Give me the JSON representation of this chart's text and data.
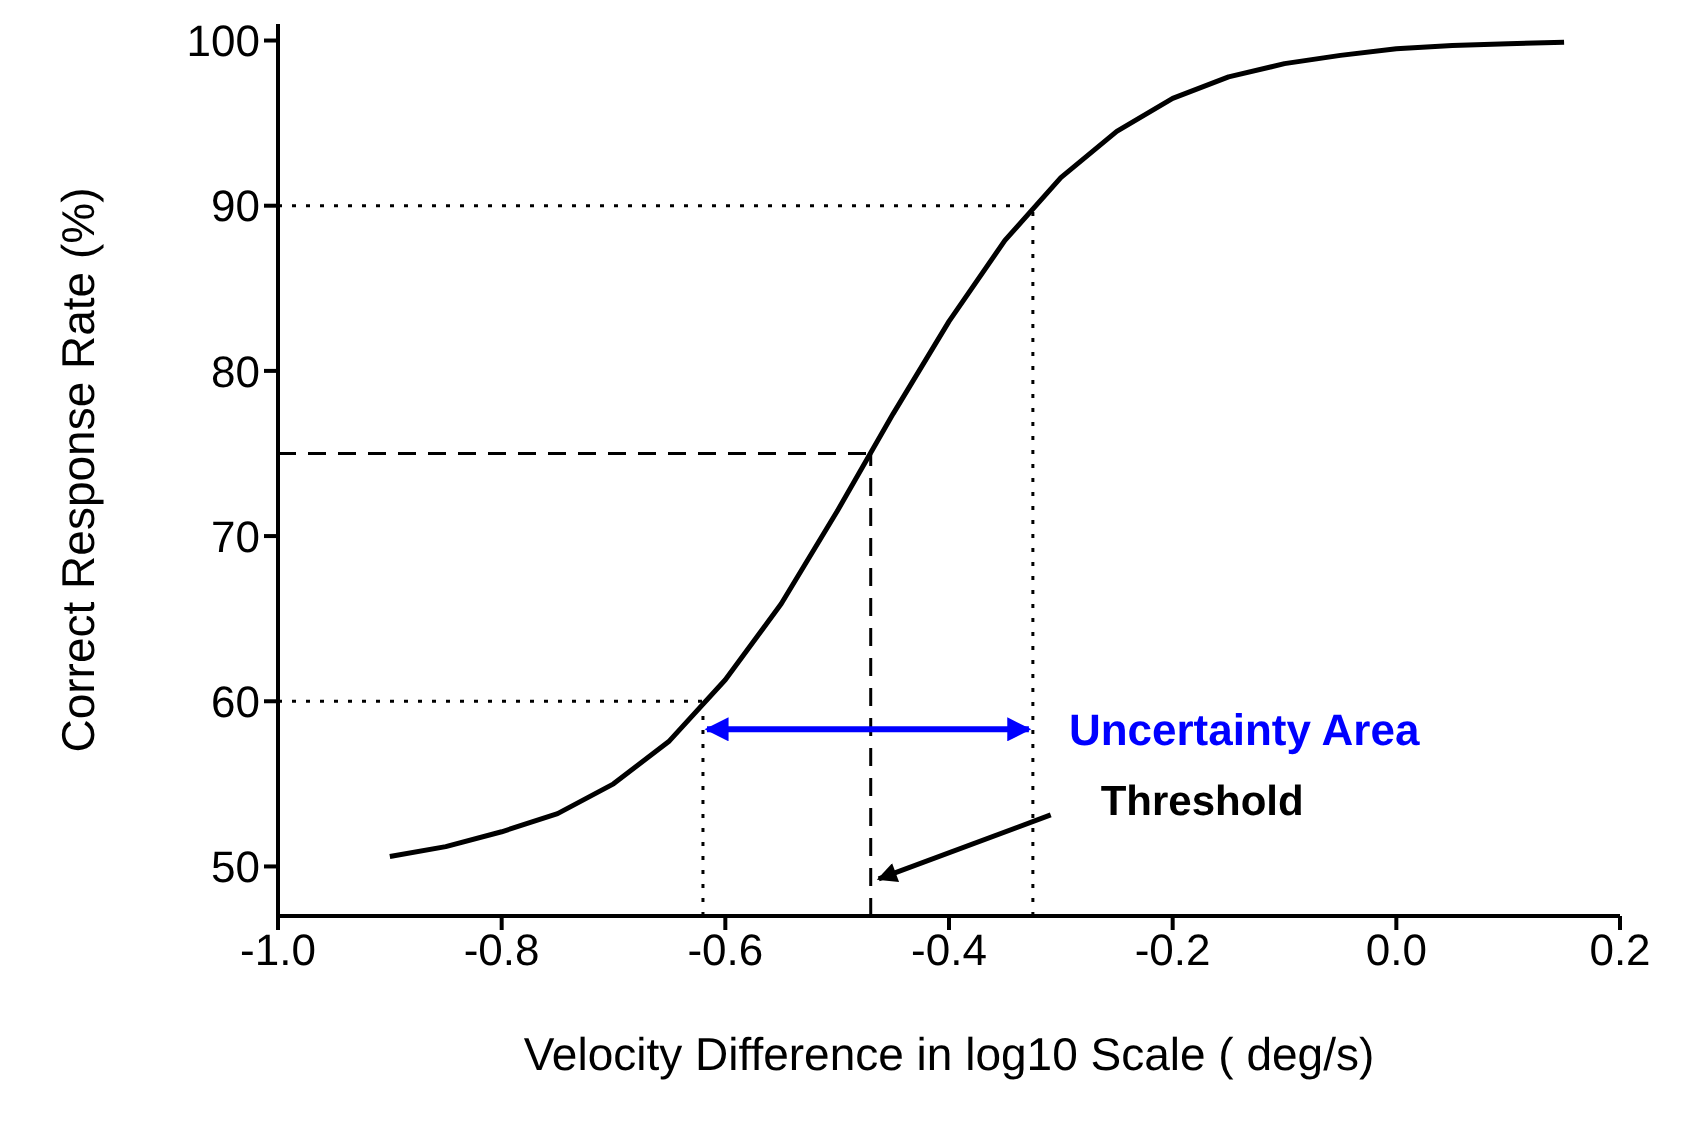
{
  "chart_data": {
    "type": "line",
    "xlabel": "Velocity Difference in log10 Scale ( deg/s)",
    "ylabel": "Correct Response Rate (%)",
    "x": [
      -0.9,
      -0.85,
      -0.8,
      -0.75,
      -0.7,
      -0.65,
      -0.6,
      -0.55,
      -0.5,
      -0.45,
      -0.4,
      -0.35,
      -0.3,
      -0.25,
      -0.2,
      -0.15,
      -0.1,
      -0.05,
      0,
      0.05,
      0.1,
      0.15
    ],
    "series": [
      {
        "color": "#000000",
        "values": [
          50.6,
          51.2,
          52.1,
          53.2,
          55.0,
          57.6,
          61.3,
          65.9,
          71.5,
          77.4,
          83.0,
          87.9,
          91.7,
          94.5,
          96.5,
          97.8,
          98.6,
          99.1,
          99.5,
          99.7,
          99.8,
          99.9
        ]
      }
    ],
    "xlim": [
      -1.0,
      0.2
    ],
    "ylim": [
      47,
      101
    ],
    "xticks": [
      {
        "value": -1.0,
        "label": "-1.0"
      },
      -0.8,
      -0.6,
      -0.4,
      -0.2,
      {
        "value": 0,
        "label": "0.0"
      },
      0.2
    ],
    "yticks": [
      50,
      60,
      70,
      80,
      90,
      100
    ],
    "ref_lines": [
      {
        "axis": "y",
        "value": 90,
        "line_style": "dotted"
      },
      {
        "axis": "x",
        "value": -0.325,
        "line_style": "dotted"
      },
      {
        "axis": "y",
        "value": 75,
        "line_style": "dashed"
      },
      {
        "axis": "x",
        "value": -0.47,
        "line_style": "dashed"
      },
      {
        "axis": "y",
        "value": 60,
        "line_style": "dotted"
      },
      {
        "axis": "x",
        "value": -0.62,
        "line_style": "dotted"
      }
    ],
    "annotations": [
      {
        "text": "Uncertainty Area",
        "x": -0.325,
        "y": 58.3
      },
      {
        "text": "Threshold",
        "x": -0.47,
        "y": 49
      }
    ],
    "grid": false,
    "legend": false,
    "marker": "none",
    "line_style": "solid"
  }
}
